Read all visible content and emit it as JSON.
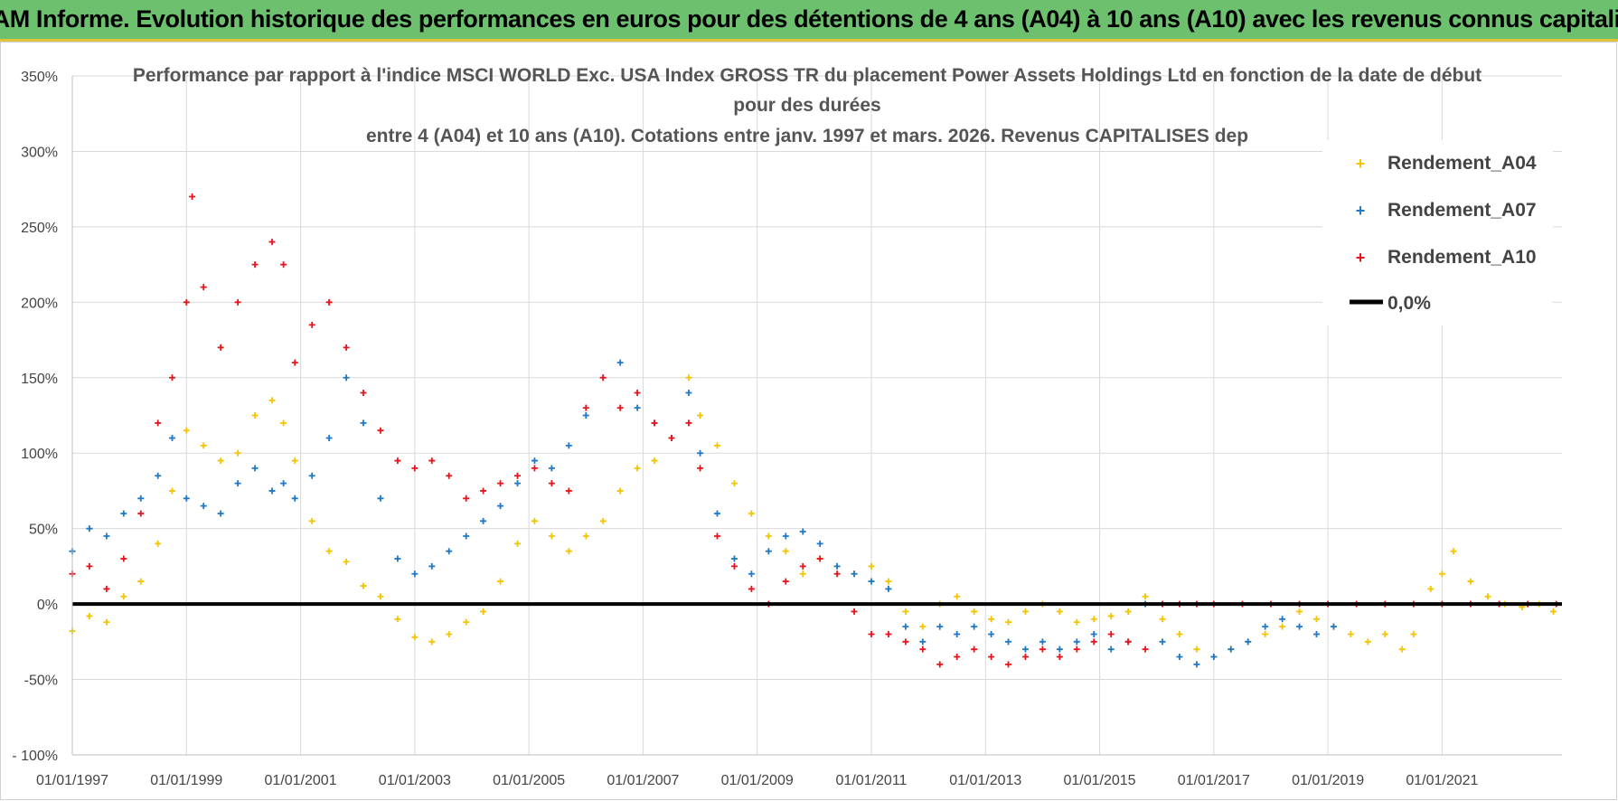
{
  "banner": {
    "title": "ADAM Informe. Evolution historique des performances en euros pour des détentions de 4 ans (A04) à 10 ans (A10) avec les revenus connus capitalisés"
  },
  "chart_data": {
    "type": "scatter",
    "title_lines": [
      "Performance par rapport à l'indice MSCI WORLD Exc. USA Index GROSS TR  du placement Power Assets Holdings Ltd en fonction de la date de début",
      "pour des durées",
      "entre 4 (A04) et 10 ans (A10). Cotations entre janv. 1997 et mars. 2026. Revenus CAPITALISES dep"
    ],
    "x_range": [
      1997.0,
      2023.1
    ],
    "y_range": [
      -100,
      350
    ],
    "y_ticks": [
      -100,
      -50,
      0,
      50,
      100,
      150,
      200,
      250,
      300,
      350
    ],
    "y_tick_labels": [
      "- 100%",
      "-50%",
      "0%",
      "50%",
      "100%",
      "150%",
      "200%",
      "250%",
      "300%",
      "350%"
    ],
    "x_ticks": [
      1997,
      1999,
      2001,
      2003,
      2005,
      2007,
      2009,
      2011,
      2013,
      2015,
      2017,
      2019,
      2021
    ],
    "x_tick_labels": [
      "01/01/1997",
      "01/01/1999",
      "01/01/2001",
      "01/01/2003",
      "01/01/2005",
      "01/01/2007",
      "01/01/2009",
      "01/01/2011",
      "01/01/2013",
      "01/01/2015",
      "01/01/2017",
      "01/01/2019",
      "01/01/2021"
    ],
    "grid": true,
    "legend_position": "top-right",
    "series": [
      {
        "name": "Rendement_A04",
        "color": "#f5c400",
        "marker": "plus",
        "x": [
          1997.0,
          1997.3,
          1997.6,
          1997.9,
          1998.2,
          1998.5,
          1998.75,
          1999.0,
          1999.3,
          1999.6,
          1999.9,
          2000.2,
          2000.5,
          2000.7,
          2000.9,
          2001.2,
          2001.5,
          2001.8,
          2002.1,
          2002.4,
          2002.7,
          2003.0,
          2003.3,
          2003.6,
          2003.9,
          2004.2,
          2004.5,
          2004.8,
          2005.1,
          2005.4,
          2005.7,
          2006.0,
          2006.3,
          2006.6,
          2006.9,
          2007.2,
          2007.5,
          2007.8,
          2008.0,
          2008.3,
          2008.6,
          2008.9,
          2009.2,
          2009.5,
          2009.8,
          2010.1,
          2010.4,
          2010.7,
          2011.0,
          2011.3,
          2011.6,
          2011.9,
          2012.2,
          2012.5,
          2012.8,
          2013.1,
          2013.4,
          2013.7,
          2014.0,
          2014.3,
          2014.6,
          2014.9,
          2015.2,
          2015.5,
          2015.8,
          2016.1,
          2016.4,
          2016.7,
          2017.0,
          2017.3,
          2017.6,
          2017.9,
          2018.2,
          2018.5,
          2018.8,
          2019.1,
          2019.4,
          2019.7,
          2020.0,
          2020.3,
          2020.5,
          2020.8,
          2021.0,
          2021.2,
          2021.5,
          2021.8,
          2022.1,
          2022.4,
          2022.7,
          2022.95
        ],
        "y": [
          -18,
          -8,
          -12,
          5,
          15,
          40,
          75,
          115,
          105,
          95,
          100,
          125,
          135,
          120,
          95,
          55,
          35,
          28,
          12,
          5,
          -10,
          -22,
          -25,
          -20,
          -12,
          -5,
          15,
          40,
          55,
          45,
          35,
          45,
          55,
          75,
          90,
          95,
          110,
          150,
          125,
          105,
          80,
          60,
          45,
          35,
          20,
          30,
          25,
          20,
          25,
          15,
          -5,
          -15,
          0,
          5,
          -5,
          -10,
          -12,
          -5,
          0,
          -5,
          -12,
          -10,
          -8,
          -5,
          5,
          -10,
          -20,
          -30,
          -35,
          -30,
          -25,
          -20,
          -15,
          -5,
          -10,
          -15,
          -20,
          -25,
          -20,
          -30,
          -20,
          10,
          20,
          35,
          15,
          5,
          0,
          -2,
          0,
          -5
        ]
      },
      {
        "name": "Rendement_A07",
        "color": "#1f78c8",
        "marker": "plus",
        "x": [
          1997.0,
          1997.3,
          1997.6,
          1997.9,
          1998.2,
          1998.5,
          1998.75,
          1999.0,
          1999.3,
          1999.6,
          1999.9,
          2000.2,
          2000.5,
          2000.7,
          2000.9,
          2001.2,
          2001.5,
          2001.8,
          2002.1,
          2002.4,
          2002.7,
          2003.0,
          2003.3,
          2003.6,
          2003.9,
          2004.2,
          2004.5,
          2004.8,
          2005.1,
          2005.4,
          2005.7,
          2006.0,
          2006.3,
          2006.6,
          2006.9,
          2007.2,
          2007.5,
          2007.8,
          2008.0,
          2008.3,
          2008.6,
          2008.9,
          2009.2,
          2009.5,
          2009.8,
          2010.1,
          2010.4,
          2010.7,
          2011.0,
          2011.3,
          2011.6,
          2011.9,
          2012.2,
          2012.5,
          2012.8,
          2013.1,
          2013.4,
          2013.7,
          2014.0,
          2014.3,
          2014.6,
          2014.9,
          2015.2,
          2015.5,
          2015.8,
          2016.1,
          2016.4,
          2016.7,
          2017.0,
          2017.3,
          2017.6,
          2017.9,
          2018.2,
          2018.5,
          2018.8,
          2019.1
        ],
        "y": [
          35,
          50,
          45,
          60,
          70,
          85,
          110,
          70,
          65,
          60,
          80,
          90,
          75,
          80,
          70,
          85,
          110,
          150,
          120,
          70,
          30,
          20,
          25,
          35,
          45,
          55,
          65,
          80,
          95,
          90,
          105,
          125,
          150,
          160,
          130,
          120,
          110,
          140,
          100,
          60,
          30,
          20,
          35,
          45,
          48,
          40,
          25,
          20,
          15,
          10,
          -15,
          -25,
          -15,
          -20,
          -15,
          -20,
          -25,
          -30,
          -25,
          -30,
          -25,
          -20,
          -30,
          -25,
          0,
          -25,
          -35,
          -40,
          -35,
          -30,
          -25,
          -15,
          -10,
          -15,
          -20,
          -15
        ]
      },
      {
        "name": "Rendement_A10",
        "color": "#e8141c",
        "marker": "plus",
        "x": [
          1997.0,
          1997.3,
          1997.6,
          1997.9,
          1998.2,
          1998.5,
          1998.75,
          1999.0,
          1999.1,
          1999.3,
          1999.6,
          1999.9,
          2000.2,
          2000.5,
          2000.7,
          2000.9,
          2001.2,
          2001.5,
          2001.8,
          2002.1,
          2002.4,
          2002.7,
          2003.0,
          2003.3,
          2003.6,
          2003.9,
          2004.2,
          2004.5,
          2004.8,
          2005.1,
          2005.4,
          2005.7,
          2006.0,
          2006.3,
          2006.6,
          2006.9,
          2007.2,
          2007.5,
          2007.8,
          2008.0,
          2008.3,
          2008.6,
          2008.9,
          2009.2,
          2009.5,
          2009.8,
          2010.1,
          2010.4,
          2010.7,
          2011.0,
          2011.3,
          2011.6,
          2011.9,
          2012.2,
          2012.5,
          2012.8,
          2013.1,
          2013.4,
          2013.7,
          2014.0,
          2014.3,
          2014.6,
          2014.9,
          2015.2,
          2015.5,
          2015.8,
          2016.1,
          2016.4,
          2016.7,
          2017.0,
          2017.5,
          2018.0,
          2018.5,
          2019.0,
          2019.5,
          2020.0,
          2020.5,
          2021.0,
          2021.5,
          2022.0,
          2022.5,
          2023.0
        ],
        "y": [
          20,
          25,
          10,
          30,
          60,
          120,
          150,
          200,
          270,
          210,
          170,
          200,
          225,
          240,
          225,
          160,
          185,
          200,
          170,
          140,
          115,
          95,
          90,
          95,
          85,
          70,
          75,
          80,
          85,
          90,
          80,
          75,
          130,
          150,
          130,
          140,
          120,
          110,
          120,
          90,
          45,
          25,
          10,
          0,
          15,
          25,
          30,
          20,
          -5,
          -20,
          -20,
          -25,
          -30,
          -40,
          -35,
          -30,
          -35,
          -40,
          -35,
          -30,
          -35,
          -30,
          -25,
          -20,
          -25,
          -30,
          0,
          0,
          0,
          0,
          0,
          0,
          0,
          0,
          0,
          0,
          0,
          0,
          0,
          0,
          0,
          0
        ]
      },
      {
        "name": "0,0%",
        "color": "#000000",
        "marker": "line",
        "x": [
          1997.0,
          2023.1
        ],
        "y": [
          0,
          0
        ]
      }
    ]
  }
}
